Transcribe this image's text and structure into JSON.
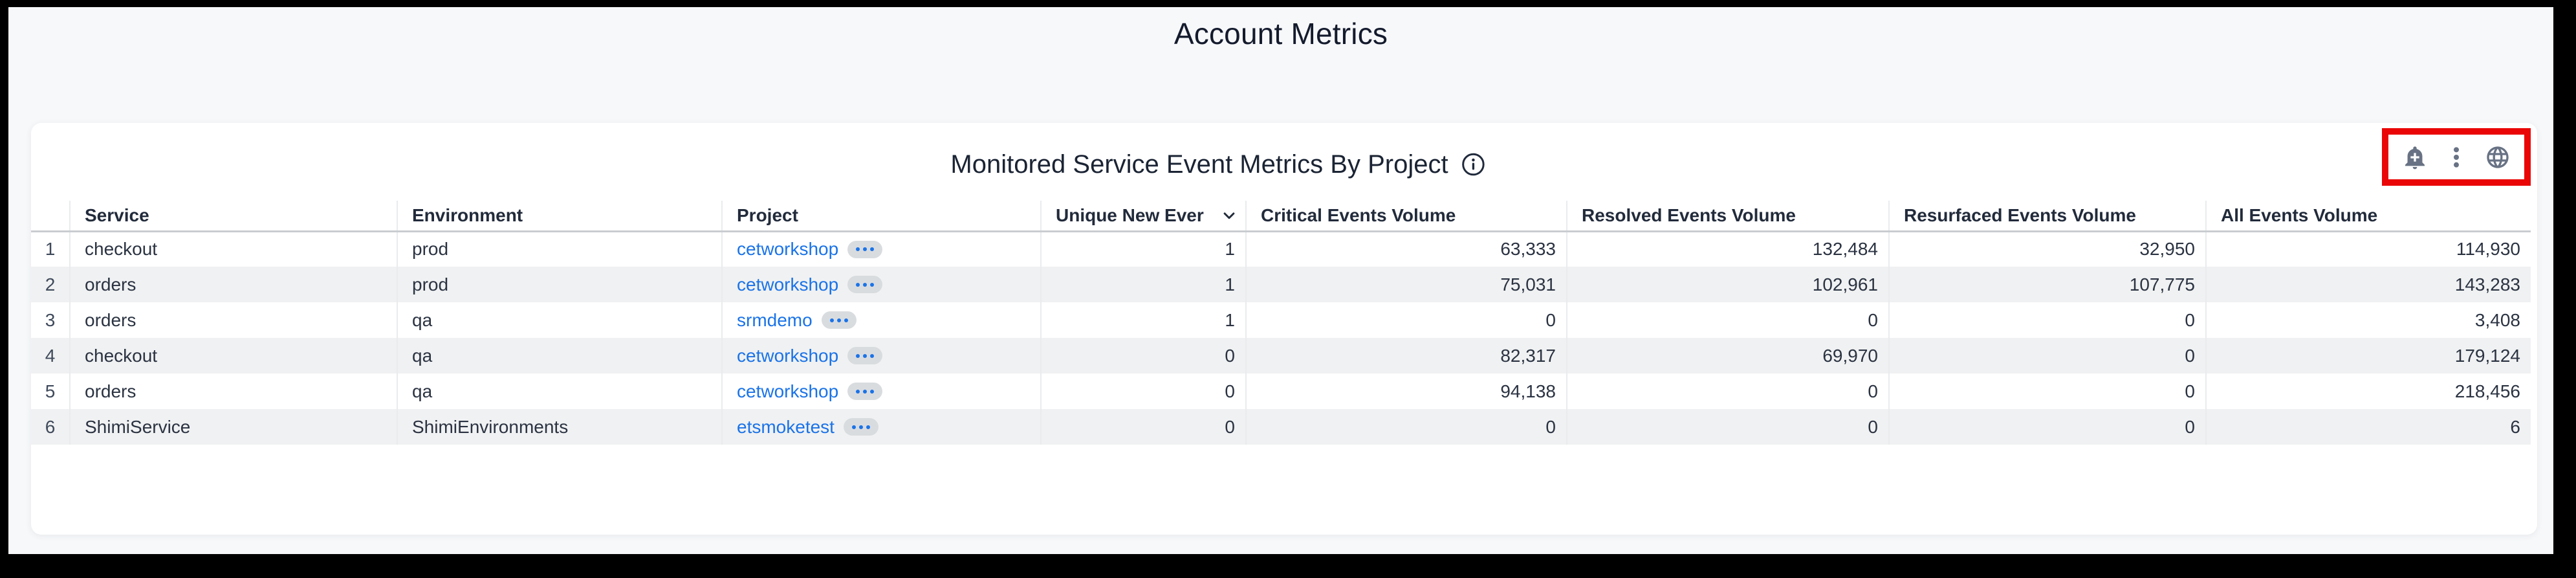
{
  "page": {
    "title": "Account Metrics"
  },
  "panel": {
    "title": "Monitored Service Event Metrics By Project",
    "toolbar": {
      "icons": [
        {
          "name": "add-alert-icon"
        },
        {
          "name": "kebab-menu-icon"
        },
        {
          "name": "globe-icon"
        }
      ],
      "highlighted": true,
      "highlight_color": "#ea0606"
    }
  },
  "table": {
    "columns": [
      {
        "key": "idx",
        "label": ""
      },
      {
        "key": "service",
        "label": "Service"
      },
      {
        "key": "environment",
        "label": "Environment"
      },
      {
        "key": "project",
        "label": "Project"
      },
      {
        "key": "unique_new",
        "label": "Unique New Ever",
        "sort": "desc"
      },
      {
        "key": "critical",
        "label": "Critical Events Volume"
      },
      {
        "key": "resolved",
        "label": "Resolved Events Volume"
      },
      {
        "key": "resurfaced",
        "label": "Resurfaced Events Volume"
      },
      {
        "key": "all",
        "label": "All Events Volume"
      }
    ],
    "rows": [
      {
        "idx": "1",
        "service": "checkout",
        "environment": "prod",
        "project": "cetworkshop",
        "unique_new": "1",
        "critical": "63,333",
        "resolved": "132,484",
        "resurfaced": "32,950",
        "all": "114,930"
      },
      {
        "idx": "2",
        "service": "orders",
        "environment": "prod",
        "project": "cetworkshop",
        "unique_new": "1",
        "critical": "75,031",
        "resolved": "102,961",
        "resurfaced": "107,775",
        "all": "143,283"
      },
      {
        "idx": "3",
        "service": "orders",
        "environment": "qa",
        "project": "srmdemo",
        "unique_new": "1",
        "critical": "0",
        "resolved": "0",
        "resurfaced": "0",
        "all": "3,408"
      },
      {
        "idx": "4",
        "service": "checkout",
        "environment": "qa",
        "project": "cetworkshop",
        "unique_new": "0",
        "critical": "82,317",
        "resolved": "69,970",
        "resurfaced": "0",
        "all": "179,124"
      },
      {
        "idx": "5",
        "service": "orders",
        "environment": "qa",
        "project": "cetworkshop",
        "unique_new": "0",
        "critical": "94,138",
        "resolved": "0",
        "resurfaced": "0",
        "all": "218,456"
      },
      {
        "idx": "6",
        "service": "ShimiService",
        "environment": "ShimiEnvironments",
        "project": "etsmoketest",
        "unique_new": "0",
        "critical": "0",
        "resolved": "0",
        "resurfaced": "0",
        "all": "6"
      }
    ],
    "colors": {
      "link": "#1a73e8",
      "stripe": "#f0f1f2",
      "header_text": "#222b3b",
      "icon_gray": "#687284"
    }
  }
}
